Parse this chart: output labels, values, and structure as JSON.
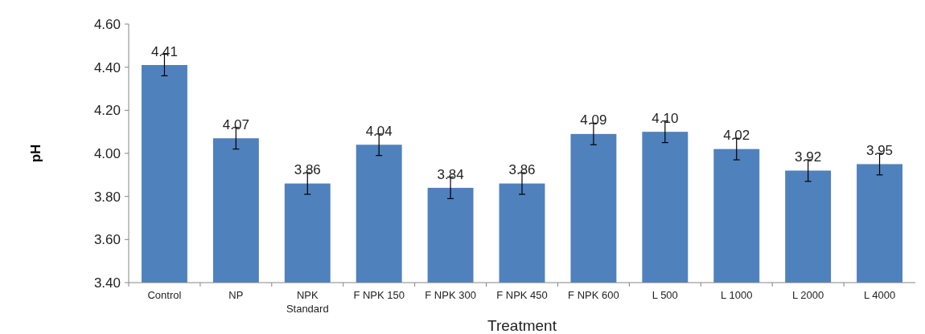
{
  "chart_data": {
    "type": "bar",
    "xlabel": "Treatment",
    "ylabel": "pH",
    "categories": [
      "Control",
      "NP",
      "NPK Standard",
      "F NPK 150",
      "F NPK 300",
      "F NPK 450",
      "F NPK 600",
      "L 500",
      "L 1000",
      "L 2000",
      "L 4000"
    ],
    "values": [
      4.41,
      4.07,
      3.86,
      4.04,
      3.84,
      3.86,
      4.09,
      4.1,
      4.02,
      3.92,
      3.95
    ],
    "value_labels": [
      "4.41",
      "4.07",
      "3.86",
      "4.04",
      "3.84",
      "3.86",
      "4.09",
      "4.10",
      "4.02",
      "3.92",
      "3.95"
    ],
    "errors": [
      0.05,
      0.05,
      0.05,
      0.05,
      0.05,
      0.05,
      0.05,
      0.05,
      0.05,
      0.05,
      0.05
    ],
    "color": "#4f81bd",
    "ylim": [
      3.4,
      4.6
    ],
    "yticks": [
      {
        "value": 3.4,
        "label": "3.40"
      },
      {
        "value": 3.6,
        "label": "3.60"
      },
      {
        "value": 3.8,
        "label": "3.80"
      },
      {
        "value": 4.0,
        "label": "4.00"
      },
      {
        "value": 4.2,
        "label": "4.20"
      },
      {
        "value": 4.4,
        "label": "4.40"
      },
      {
        "value": 4.6,
        "label": "4.60"
      }
    ]
  }
}
